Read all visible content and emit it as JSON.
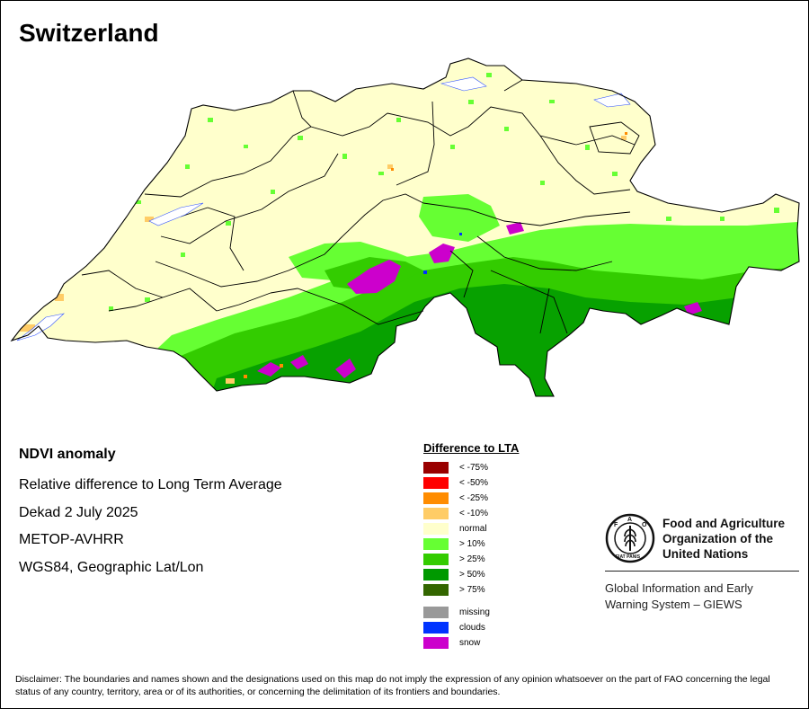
{
  "map": {
    "title": "Switzerland",
    "info": {
      "heading": "NDVI anomaly",
      "lines": [
        "Relative difference to Long Term Average",
        "Dekad 2 July 2025",
        "METOP-AVHRR",
        "WGS84, Geographic Lat/Lon"
      ]
    },
    "legend": {
      "title": "Difference to LTA",
      "items": [
        {
          "label": "< -75%",
          "color": "#990000"
        },
        {
          "label": "< -50%",
          "color": "#ff0000"
        },
        {
          "label": "< -25%",
          "color": "#ff8c00"
        },
        {
          "label": "< -10%",
          "color": "#ffcc66"
        },
        {
          "label": "normal",
          "color": "#ffffcc"
        },
        {
          "label": "> 10%",
          "color": "#66ff33"
        },
        {
          "label": "> 25%",
          "color": "#33cc00"
        },
        {
          "label": "> 50%",
          "color": "#009900"
        },
        {
          "label": "> 75%",
          "color": "#336600"
        }
      ],
      "extra": [
        {
          "label": "missing",
          "color": "#999999"
        },
        {
          "label": "clouds",
          "color": "#0033ff"
        },
        {
          "label": "snow",
          "color": "#cc00cc"
        }
      ]
    },
    "colors": {
      "land_normal": "#ffffcc",
      "border": "#000000",
      "green_light": "#66ff33",
      "green_mid": "#33cc00",
      "green_dark": "#009900",
      "snow": "#cc00cc",
      "negative": "#ffcc66"
    }
  },
  "fao": {
    "logo_letters": "FAO",
    "logo_motto": "FIAT PANIS",
    "org_lines": [
      "Food and Agriculture",
      "Organization of the",
      "United Nations"
    ],
    "giews_lines": [
      "Global Information and Early",
      "Warning System – GIEWS"
    ]
  },
  "disclaimer": "Disclaimer: The boundaries and names shown and the designations used on this map do not imply the expression of any opinion whatsoever on the part of FAO concerning the legal status of any country, territory, area or of its authorities, or concerning the delimitation of its frontiers and boundaries."
}
